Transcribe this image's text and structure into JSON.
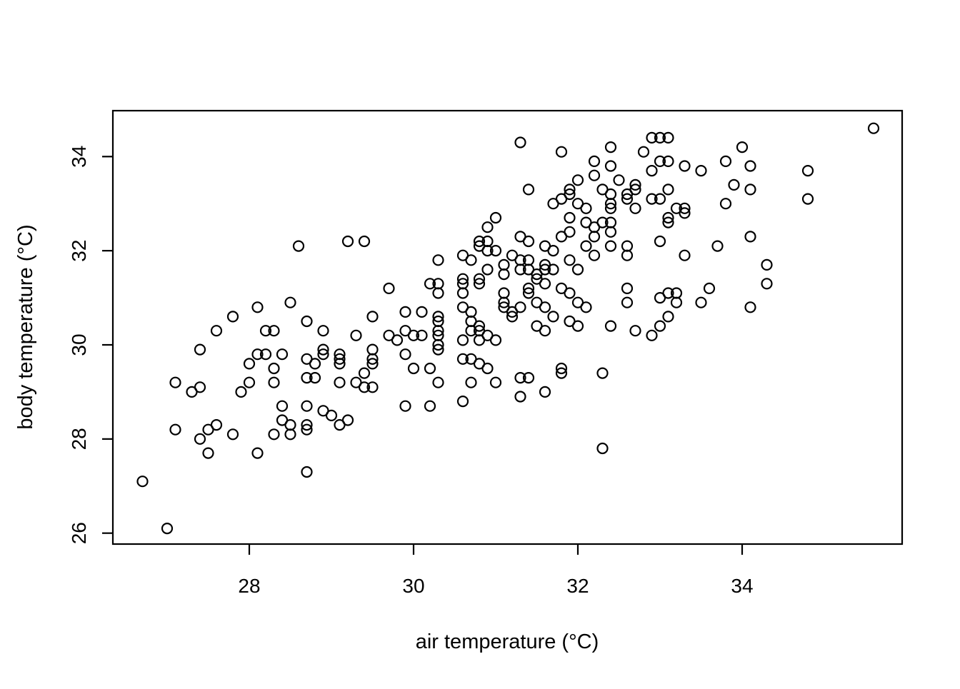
{
  "figure": {
    "background": "#ffffff",
    "frame_color": "#000000",
    "point_color": "#000000"
  },
  "chart_data": {
    "type": "scatter",
    "title": "",
    "xlabel": "air temperature (°C)",
    "ylabel": "body temperature (°C)",
    "x_ticks": [
      28,
      30,
      32,
      34
    ],
    "y_ticks": [
      26,
      28,
      30,
      32,
      34
    ],
    "xlim": [
      26.3,
      36.0
    ],
    "ylim": [
      25.8,
      35.0
    ],
    "grid": false,
    "legend": null,
    "marker": "open-circle",
    "points": [
      [
        28.6,
        32.1
      ],
      [
        29.2,
        32.2
      ],
      [
        29.4,
        32.2
      ],
      [
        27.8,
        30.6
      ],
      [
        28.1,
        30.8
      ],
      [
        28.5,
        30.9
      ],
      [
        27.6,
        30.3
      ],
      [
        28.2,
        30.3
      ],
      [
        28.3,
        30.3
      ],
      [
        28.7,
        30.5
      ],
      [
        28.9,
        30.3
      ],
      [
        29.3,
        30.2
      ],
      [
        29.5,
        30.6
      ],
      [
        26.7,
        27.1
      ],
      [
        27.0,
        26.1
      ],
      [
        27.4,
        29.9
      ],
      [
        27.1,
        29.2
      ],
      [
        27.3,
        29.0
      ],
      [
        27.4,
        29.1
      ],
      [
        28.0,
        29.6
      ],
      [
        28.1,
        29.8
      ],
      [
        28.2,
        29.8
      ],
      [
        28.4,
        29.8
      ],
      [
        28.3,
        29.5
      ],
      [
        28.7,
        29.7
      ],
      [
        28.8,
        29.6
      ],
      [
        28.9,
        29.9
      ],
      [
        28.9,
        29.8
      ],
      [
        29.1,
        29.8
      ],
      [
        29.1,
        29.7
      ],
      [
        29.1,
        29.6
      ],
      [
        27.9,
        29.0
      ],
      [
        28.0,
        29.2
      ],
      [
        28.3,
        29.2
      ],
      [
        28.7,
        29.3
      ],
      [
        28.8,
        29.3
      ],
      [
        29.1,
        29.2
      ],
      [
        29.3,
        29.2
      ],
      [
        29.4,
        29.1
      ],
      [
        29.4,
        29.4
      ],
      [
        27.1,
        28.2
      ],
      [
        27.4,
        28.0
      ],
      [
        27.5,
        28.2
      ],
      [
        27.6,
        28.3
      ],
      [
        27.5,
        27.7
      ],
      [
        27.8,
        28.1
      ],
      [
        28.1,
        27.7
      ],
      [
        28.3,
        28.1
      ],
      [
        28.4,
        28.4
      ],
      [
        28.4,
        28.7
      ],
      [
        28.5,
        28.3
      ],
      [
        28.5,
        28.1
      ],
      [
        28.7,
        28.3
      ],
      [
        28.7,
        28.2
      ],
      [
        28.7,
        28.7
      ],
      [
        28.9,
        28.6
      ],
      [
        29.0,
        28.5
      ],
      [
        29.1,
        28.3
      ],
      [
        29.2,
        28.4
      ],
      [
        28.7,
        27.3
      ],
      [
        29.7,
        30.2
      ],
      [
        29.8,
        30.1
      ],
      [
        29.9,
        30.3
      ],
      [
        30.0,
        30.2
      ],
      [
        30.1,
        30.2
      ],
      [
        30.3,
        30.3
      ],
      [
        30.3,
        30.2
      ],
      [
        30.3,
        30.0
      ],
      [
        30.3,
        29.9
      ],
      [
        30.6,
        30.1
      ],
      [
        30.7,
        30.3
      ],
      [
        30.8,
        30.3
      ],
      [
        30.8,
        30.1
      ],
      [
        30.9,
        30.2
      ],
      [
        31.0,
        30.1
      ],
      [
        29.9,
        29.8
      ],
      [
        29.5,
        29.9
      ],
      [
        29.5,
        29.7
      ],
      [
        29.5,
        29.6
      ],
      [
        30.0,
        29.5
      ],
      [
        30.2,
        29.5
      ],
      [
        30.3,
        29.2
      ],
      [
        30.6,
        29.7
      ],
      [
        30.7,
        29.7
      ],
      [
        30.8,
        29.6
      ],
      [
        30.9,
        29.5
      ],
      [
        30.7,
        29.2
      ],
      [
        31.0,
        29.2
      ],
      [
        31.3,
        29.3
      ],
      [
        31.4,
        29.3
      ],
      [
        31.3,
        28.9
      ],
      [
        31.6,
        29.0
      ],
      [
        31.8,
        29.5
      ],
      [
        31.8,
        29.4
      ],
      [
        32.3,
        29.4
      ],
      [
        32.3,
        27.8
      ],
      [
        29.9,
        28.7
      ],
      [
        30.2,
        28.7
      ],
      [
        30.6,
        28.8
      ],
      [
        29.5,
        29.1
      ],
      [
        32.7,
        30.3
      ],
      [
        32.9,
        30.2
      ],
      [
        31.3,
        34.3
      ],
      [
        31.8,
        34.1
      ],
      [
        32.4,
        34.2
      ],
      [
        32.2,
        33.9
      ],
      [
        32.4,
        33.8
      ],
      [
        32.2,
        33.6
      ],
      [
        32.0,
        33.5
      ],
      [
        32.5,
        33.5
      ],
      [
        32.3,
        33.3
      ],
      [
        31.9,
        33.3
      ],
      [
        31.9,
        33.2
      ],
      [
        31.8,
        33.1
      ],
      [
        31.7,
        33.0
      ],
      [
        31.4,
        33.3
      ],
      [
        32.0,
        33.0
      ],
      [
        32.4,
        33.2
      ],
      [
        32.4,
        33.0
      ],
      [
        32.4,
        32.9
      ],
      [
        32.6,
        33.2
      ],
      [
        32.6,
        33.1
      ],
      [
        32.7,
        32.9
      ],
      [
        32.7,
        33.4
      ],
      [
        32.7,
        33.3
      ],
      [
        32.1,
        32.9
      ],
      [
        31.9,
        32.7
      ],
      [
        31.9,
        32.4
      ],
      [
        32.1,
        32.6
      ],
      [
        31.8,
        32.3
      ],
      [
        32.2,
        32.5
      ],
      [
        32.2,
        32.3
      ],
      [
        32.3,
        32.6
      ],
      [
        32.4,
        32.6
      ],
      [
        32.4,
        32.4
      ],
      [
        32.4,
        32.1
      ],
      [
        32.6,
        32.1
      ],
      [
        32.6,
        31.9
      ],
      [
        32.1,
        32.1
      ],
      [
        32.2,
        31.9
      ],
      [
        31.6,
        32.1
      ],
      [
        31.7,
        32.0
      ],
      [
        31.3,
        32.3
      ],
      [
        31.4,
        32.2
      ],
      [
        31.0,
        32.7
      ],
      [
        30.9,
        32.5
      ],
      [
        30.8,
        32.2
      ],
      [
        31.0,
        32.0
      ],
      [
        31.2,
        31.9
      ],
      [
        31.3,
        31.8
      ],
      [
        31.3,
        31.6
      ],
      [
        31.4,
        31.6
      ],
      [
        31.4,
        31.8
      ],
      [
        31.6,
        31.7
      ],
      [
        31.6,
        31.6
      ],
      [
        31.7,
        31.6
      ],
      [
        31.5,
        31.5
      ],
      [
        31.5,
        31.4
      ],
      [
        31.6,
        31.3
      ],
      [
        31.9,
        31.8
      ],
      [
        32.0,
        31.6
      ],
      [
        31.8,
        31.2
      ],
      [
        31.9,
        31.1
      ],
      [
        32.6,
        31.2
      ],
      [
        30.2,
        31.3
      ],
      [
        30.3,
        31.3
      ],
      [
        30.3,
        31.1
      ],
      [
        30.6,
        31.4
      ],
      [
        30.6,
        31.3
      ],
      [
        30.6,
        31.1
      ],
      [
        29.7,
        31.2
      ],
      [
        29.9,
        30.7
      ],
      [
        30.1,
        30.7
      ],
      [
        30.3,
        30.6
      ],
      [
        30.3,
        30.5
      ],
      [
        30.3,
        31.8
      ],
      [
        30.6,
        31.9
      ],
      [
        30.7,
        31.8
      ],
      [
        30.8,
        32.1
      ],
      [
        30.9,
        32.2
      ],
      [
        30.9,
        32.0
      ],
      [
        30.9,
        31.6
      ],
      [
        31.1,
        31.7
      ],
      [
        31.1,
        31.5
      ],
      [
        30.8,
        31.4
      ],
      [
        30.8,
        31.3
      ],
      [
        31.4,
        31.2
      ],
      [
        31.4,
        31.1
      ],
      [
        30.6,
        30.8
      ],
      [
        30.7,
        30.7
      ],
      [
        30.7,
        30.5
      ],
      [
        30.8,
        30.4
      ],
      [
        31.1,
        31.1
      ],
      [
        31.1,
        30.9
      ],
      [
        31.1,
        30.8
      ],
      [
        31.2,
        30.7
      ],
      [
        31.3,
        30.8
      ],
      [
        31.2,
        30.6
      ],
      [
        31.5,
        30.9
      ],
      [
        31.6,
        30.8
      ],
      [
        31.7,
        30.6
      ],
      [
        31.5,
        30.4
      ],
      [
        31.6,
        30.3
      ],
      [
        32.0,
        30.9
      ],
      [
        32.1,
        30.8
      ],
      [
        31.9,
        30.5
      ],
      [
        32.0,
        30.4
      ],
      [
        32.6,
        30.9
      ],
      [
        32.4,
        30.4
      ],
      [
        35.6,
        34.6
      ],
      [
        32.9,
        34.4
      ],
      [
        33.0,
        34.4
      ],
      [
        33.1,
        34.4
      ],
      [
        32.8,
        34.1
      ],
      [
        32.9,
        33.7
      ],
      [
        33.0,
        33.9
      ],
      [
        33.1,
        33.9
      ],
      [
        33.3,
        33.8
      ],
      [
        33.5,
        33.7
      ],
      [
        33.8,
        33.9
      ],
      [
        34.0,
        34.2
      ],
      [
        34.1,
        33.8
      ],
      [
        34.8,
        33.7
      ],
      [
        34.8,
        33.1
      ],
      [
        33.9,
        33.4
      ],
      [
        34.1,
        33.3
      ],
      [
        33.8,
        33.0
      ],
      [
        32.9,
        33.1
      ],
      [
        33.0,
        33.1
      ],
      [
        33.1,
        33.3
      ],
      [
        33.2,
        32.9
      ],
      [
        33.3,
        32.9
      ],
      [
        33.3,
        32.8
      ],
      [
        33.1,
        32.7
      ],
      [
        33.1,
        32.6
      ],
      [
        33.0,
        32.2
      ],
      [
        33.3,
        31.9
      ],
      [
        33.7,
        32.1
      ],
      [
        34.1,
        32.3
      ],
      [
        34.3,
        31.7
      ],
      [
        34.3,
        31.3
      ],
      [
        33.6,
        31.2
      ],
      [
        33.5,
        30.9
      ],
      [
        33.1,
        31.1
      ],
      [
        33.2,
        31.1
      ],
      [
        33.0,
        31.0
      ],
      [
        33.2,
        30.9
      ],
      [
        34.1,
        30.8
      ],
      [
        33.1,
        30.6
      ],
      [
        33.0,
        30.4
      ]
    ]
  }
}
